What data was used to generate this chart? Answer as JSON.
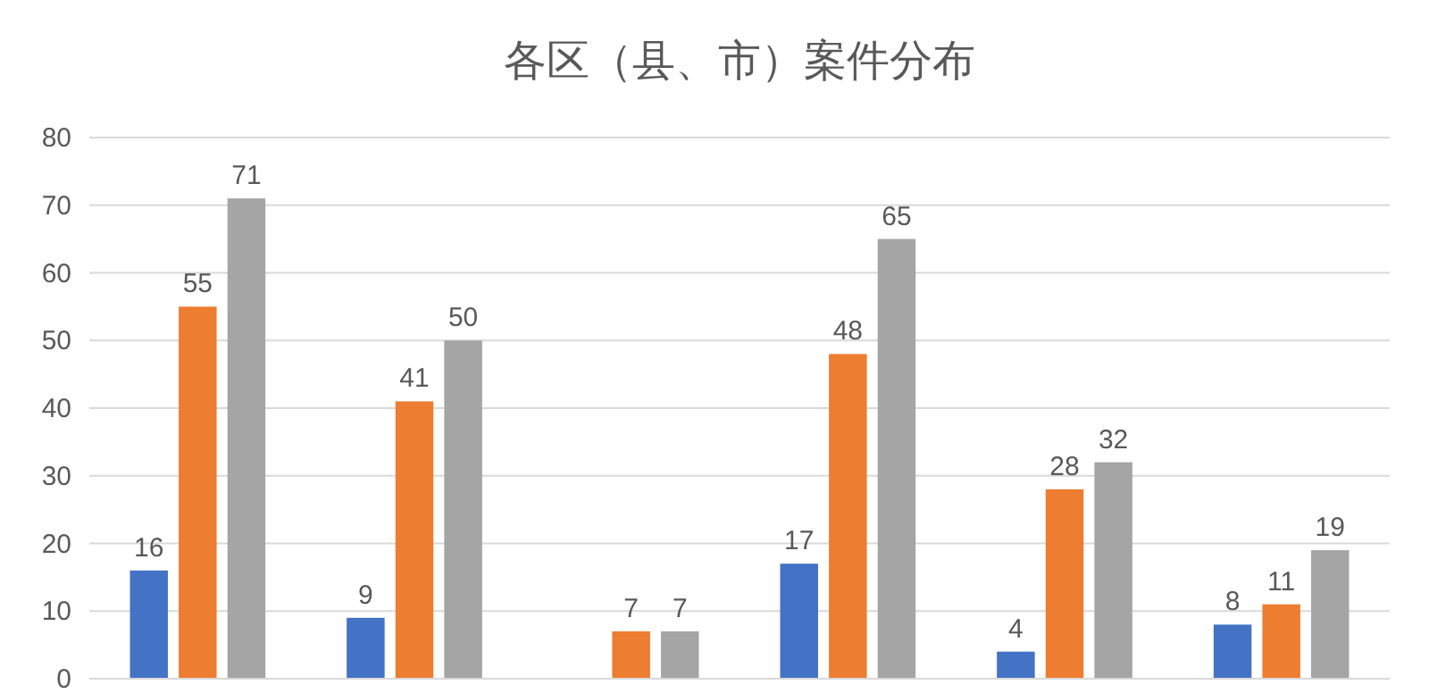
{
  "chart_data": {
    "type": "bar",
    "title": "各区（县、市）案件分布",
    "categories": [
      null,
      null,
      null,
      null,
      null,
      null
    ],
    "series": [
      {
        "color": "#4472c4",
        "values": [
          16,
          9,
          null,
          17,
          4,
          8
        ]
      },
      {
        "color": "#ed7d31",
        "values": [
          55,
          41,
          7,
          48,
          28,
          11
        ]
      },
      {
        "color": "#a5a5a5",
        "values": [
          71,
          50,
          7,
          65,
          32,
          19
        ]
      }
    ],
    "ylim": [
      0,
      80
    ],
    "yticks": [
      0,
      10,
      20,
      30,
      40,
      50,
      60,
      70,
      80
    ],
    "grid": "y",
    "data_labels": true
  }
}
